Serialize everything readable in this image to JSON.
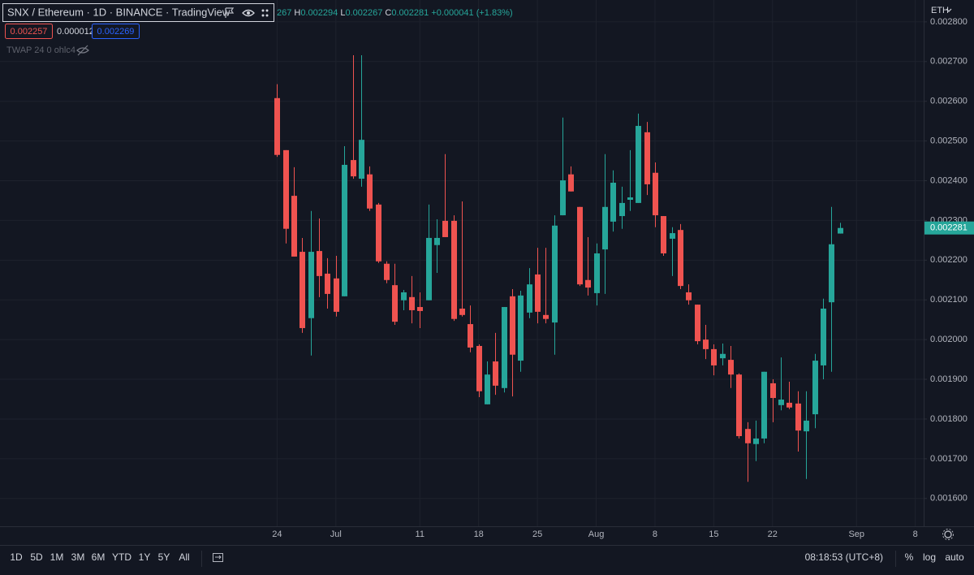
{
  "chart_data": {
    "type": "candlestick",
    "x": [
      "06-24",
      "06-25",
      "06-26",
      "06-27",
      "06-28",
      "06-29",
      "06-30",
      "07-01",
      "07-02",
      "07-03",
      "07-04",
      "07-05",
      "07-06",
      "07-07",
      "07-08",
      "07-09",
      "07-10",
      "07-11",
      "07-12",
      "07-13",
      "07-14",
      "07-15",
      "07-16",
      "07-17",
      "07-18",
      "07-19",
      "07-20",
      "07-21",
      "07-22",
      "07-23",
      "07-24",
      "07-25",
      "07-26",
      "07-27",
      "07-28",
      "07-29",
      "07-30",
      "07-31",
      "08-01",
      "08-02",
      "08-03",
      "08-04",
      "08-05",
      "08-06",
      "08-07",
      "08-08",
      "08-09",
      "08-10",
      "08-11",
      "08-12",
      "08-13",
      "08-14",
      "08-15",
      "08-16",
      "08-17",
      "08-18",
      "08-19",
      "08-20",
      "08-21",
      "08-22",
      "08-23",
      "08-24",
      "08-25",
      "08-26",
      "08-27",
      "08-28",
      "08-29",
      "08-30"
    ],
    "open": [
      0.002608,
      0.002477,
      0.002362,
      0.002221,
      0.002054,
      0.002223,
      0.002166,
      0.002154,
      0.002109,
      0.002452,
      0.002405,
      0.002416,
      0.00234,
      0.002191,
      0.002137,
      0.002099,
      0.002107,
      0.002082,
      0.002099,
      0.002238,
      0.002299,
      0.002299,
      0.002078,
      0.002039,
      0.001984,
      0.001837,
      0.001945,
      0.001878,
      0.002109,
      0.001947,
      0.002068,
      0.002164,
      0.002062,
      0.002043,
      0.002313,
      0.002416,
      0.002334,
      0.00215,
      0.002117,
      0.002227,
      0.002297,
      0.002311,
      0.002352,
      0.002344,
      0.002522,
      0.00242,
      0.002311,
      0.002254,
      0.002276,
      0.002119,
      0.002088,
      0.002,
      0.001976,
      0.001953,
      0.001949,
      0.001912,
      0.001775,
      0.001737,
      0.001751,
      0.00189,
      0.001835,
      0.001841,
      0.001839,
      0.001769,
      0.001812,
      0.001935,
      0.002094,
      0.002267
    ],
    "high": [
      0.002643,
      0.002477,
      0.002434,
      0.002256,
      0.002324,
      0.002305,
      0.002205,
      0.002211,
      0.002487,
      0.002716,
      0.002716,
      0.002436,
      0.002344,
      0.002197,
      0.002191,
      0.002125,
      0.00216,
      0.002119,
      0.00234,
      0.002303,
      0.002467,
      0.002313,
      0.002348,
      0.002086,
      0.001988,
      0.001945,
      0.002017,
      0.002082,
      0.002127,
      0.002123,
      0.00218,
      0.002231,
      0.002231,
      0.002313,
      0.002559,
      0.002436,
      0.002334,
      0.002258,
      0.002242,
      0.002467,
      0.002426,
      0.002385,
      0.002477,
      0.002569,
      0.002548,
      0.002446,
      0.002311,
      0.002283,
      0.002291,
      0.002139,
      0.002088,
      0.002037,
      0.001988,
      0.00199,
      0.001984,
      0.001915,
      0.001792,
      0.001796,
      0.001919,
      0.0019,
      0.001955,
      0.001894,
      0.00187,
      0.00187,
      0.001964,
      0.002103,
      0.002334,
      0.002294
    ],
    "low": [
      0.00246,
      0.002242,
      0.002209,
      0.002017,
      0.00196,
      0.002107,
      0.002078,
      0.002058,
      0.002109,
      0.002405,
      0.002385,
      0.002324,
      0.002193,
      0.002142,
      0.002037,
      0.002074,
      0.002041,
      0.002029,
      0.002099,
      0.002168,
      0.002258,
      0.002047,
      0.002058,
      0.001968,
      0.001855,
      0.001837,
      0.001861,
      0.001867,
      0.001857,
      0.001919,
      0.002054,
      0.002041,
      0.002041,
      0.001962,
      0.002313,
      0.002373,
      0.002135,
      0.002111,
      0.002086,
      0.002115,
      0.002272,
      0.002279,
      0.002324,
      0.002344,
      0.002364,
      0.002283,
      0.002211,
      0.00216,
      0.002127,
      0.002088,
      0.001988,
      0.001951,
      0.00191,
      0.001935,
      0.001878,
      0.001751,
      0.001642,
      0.001694,
      0.001739,
      0.001792,
      0.001822,
      0.001825,
      0.001718,
      0.001649,
      0.001777,
      0.0019,
      0.001919,
      0.002267
    ],
    "close": [
      0.002465,
      0.002279,
      0.002209,
      0.002029,
      0.002221,
      0.00216,
      0.002115,
      0.00207,
      0.00244,
      0.002411,
      0.002503,
      0.00233,
      0.002197,
      0.00215,
      0.002045,
      0.002119,
      0.002074,
      0.002072,
      0.002256,
      0.002256,
      0.002258,
      0.002052,
      0.002062,
      0.00198,
      0.00187,
      0.001912,
      0.001884,
      0.002082,
      0.001962,
      0.002111,
      0.002139,
      0.00207,
      0.002052,
      0.002287,
      0.002401,
      0.002373,
      0.002139,
      0.002131,
      0.002217,
      0.002334,
      0.002395,
      0.002344,
      0.002358,
      0.002538,
      0.002391,
      0.002313,
      0.002217,
      0.002268,
      0.002135,
      0.002099,
      0.001996,
      0.001976,
      0.001935,
      0.001964,
      0.001912,
      0.001757,
      0.001739,
      0.001751,
      0.001919,
      0.001853,
      0.001849,
      0.001829,
      0.001771,
      0.001796,
      0.001947,
      0.002078,
      0.00224,
      0.002281
    ],
    "up_color": "#26a69a",
    "down_color": "#ef5350",
    "xlim": [
      "05-22",
      "09-09"
    ],
    "xticks": [
      {
        "value": "06-24",
        "label": "24"
      },
      {
        "value": "07-01",
        "label": "Jul"
      },
      {
        "value": "07-11",
        "label": "11"
      },
      {
        "value": "07-18",
        "label": "18"
      },
      {
        "value": "07-25",
        "label": "25"
      },
      {
        "value": "08-01",
        "label": "Aug"
      },
      {
        "value": "08-08",
        "label": "8"
      },
      {
        "value": "08-15",
        "label": "15"
      },
      {
        "value": "08-22",
        "label": "22"
      },
      {
        "value": "09-01",
        "label": "Sep"
      },
      {
        "value": "09-08",
        "label": "8"
      }
    ],
    "ylim": [
      0.00153,
      0.002855
    ],
    "yticks": [
      {
        "value": 0.0016,
        "label": "0.001600"
      },
      {
        "value": 0.0017,
        "label": "0.001700"
      },
      {
        "value": 0.0018,
        "label": "0.001800"
      },
      {
        "value": 0.0019,
        "label": "0.001900"
      },
      {
        "value": 0.002,
        "label": "0.002000"
      },
      {
        "value": 0.0021,
        "label": "0.002100"
      },
      {
        "value": 0.0022,
        "label": "0.002200"
      },
      {
        "value": 0.0023,
        "label": "0.002300"
      },
      {
        "value": 0.0024,
        "label": "0.002400"
      },
      {
        "value": 0.0025,
        "label": "0.002500"
      },
      {
        "value": 0.0026,
        "label": "0.002600"
      },
      {
        "value": 0.0027,
        "label": "0.002700"
      },
      {
        "value": 0.0028,
        "label": "0.002800"
      }
    ],
    "grid": true
  },
  "header": {
    "title": "SNX / Ethereum · 1D · BINANCE · TradingView",
    "legend": {
      "clipped": "267",
      "high_key": "H",
      "low_key": "L",
      "close_key": "C",
      "change": "+0.000041",
      "change_pct": "(+1.83%)"
    },
    "bid": "0.002257",
    "spread": "0.000012",
    "ask": "0.002269",
    "indicator": "TWAP 24 0 ohlc4",
    "currency": "ETH"
  },
  "toolbar": {
    "ranges": [
      "1D",
      "5D",
      "1M",
      "3M",
      "6M",
      "YTD",
      "1Y",
      "5Y",
      "All"
    ],
    "clock": "08:18:53 (UTC+8)",
    "percent": "%",
    "log": "log",
    "auto": "auto"
  }
}
